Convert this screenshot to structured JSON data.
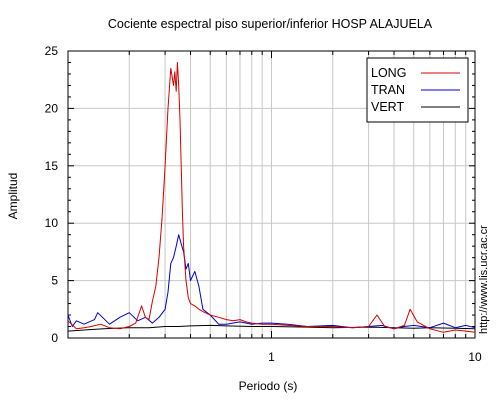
{
  "chart_data": {
    "type": "line",
    "title": "Cociente espectral piso superior/inferior  HOSP ALAJUELA",
    "xlabel": "Periodo (s)",
    "ylabel": "Amplitud",
    "x_scale": "log",
    "xlim": [
      0.1,
      10
    ],
    "ylim": [
      0,
      25
    ],
    "x_tick_labels": [
      {
        "value": 1,
        "label": "1"
      },
      {
        "value": 10,
        "label": "10"
      }
    ],
    "y_ticks": [
      0,
      5,
      10,
      15,
      20,
      25
    ],
    "grid": true,
    "legend_position": "top-right",
    "watermark": "http://www.lis.ucr.ac.cr",
    "series": [
      {
        "name": "LONG",
        "color": "#d40000",
        "x": [
          0.1,
          0.11,
          0.12,
          0.13,
          0.145,
          0.16,
          0.18,
          0.2,
          0.215,
          0.23,
          0.24,
          0.25,
          0.26,
          0.27,
          0.28,
          0.29,
          0.3,
          0.31,
          0.32,
          0.33,
          0.335,
          0.34,
          0.345,
          0.35,
          0.355,
          0.36,
          0.365,
          0.37,
          0.38,
          0.39,
          0.4,
          0.42,
          0.44,
          0.46,
          0.5,
          0.55,
          0.6,
          0.65,
          0.7,
          0.75,
          0.8,
          0.9,
          1.0,
          1.2,
          1.5,
          2.0,
          2.5,
          3.0,
          3.3,
          3.6,
          4.0,
          4.5,
          4.8,
          5.2,
          6.0,
          7.0,
          8.0,
          9.0,
          10.0
        ],
        "y": [
          1.5,
          0.8,
          0.9,
          1.0,
          1.2,
          0.9,
          0.8,
          1.0,
          1.3,
          2.8,
          1.8,
          1.6,
          3.2,
          4.5,
          7.0,
          10.5,
          15.0,
          20.0,
          23.5,
          22.0,
          23.2,
          21.5,
          24.0,
          22.0,
          19.0,
          15.0,
          11.0,
          8.0,
          5.0,
          3.5,
          3.0,
          2.8,
          2.5,
          2.3,
          2.0,
          1.8,
          1.6,
          1.5,
          1.6,
          1.4,
          1.3,
          1.2,
          1.2,
          1.1,
          1.0,
          1.0,
          0.9,
          1.0,
          2.0,
          1.0,
          0.8,
          1.1,
          2.5,
          1.4,
          0.8,
          0.5,
          0.7,
          0.6,
          0.5
        ]
      },
      {
        "name": "TRAN",
        "color": "#0000cc",
        "x": [
          0.1,
          0.105,
          0.11,
          0.12,
          0.135,
          0.14,
          0.16,
          0.18,
          0.2,
          0.22,
          0.24,
          0.26,
          0.28,
          0.3,
          0.31,
          0.32,
          0.33,
          0.34,
          0.35,
          0.36,
          0.37,
          0.38,
          0.39,
          0.4,
          0.42,
          0.44,
          0.46,
          0.5,
          0.55,
          0.6,
          0.7,
          0.8,
          0.9,
          1.0,
          1.2,
          1.5,
          2.0,
          2.5,
          3.0,
          3.5,
          4.0,
          4.5,
          5.0,
          6.0,
          7.0,
          8.0,
          9.0,
          10.0
        ],
        "y": [
          2.0,
          1.0,
          1.5,
          1.2,
          1.6,
          2.2,
          1.2,
          1.8,
          2.2,
          1.5,
          1.8,
          1.3,
          1.8,
          2.5,
          4.0,
          6.5,
          7.0,
          8.0,
          9.0,
          8.2,
          7.5,
          6.0,
          6.5,
          5.0,
          5.8,
          4.5,
          2.5,
          2.0,
          1.2,
          1.2,
          1.4,
          1.2,
          1.3,
          1.3,
          1.2,
          1.0,
          1.1,
          0.9,
          1.0,
          1.1,
          0.8,
          1.0,
          1.1,
          0.9,
          1.3,
          0.9,
          1.1,
          0.9
        ]
      },
      {
        "name": "VERT",
        "color": "#000000",
        "x": [
          0.1,
          0.12,
          0.15,
          0.2,
          0.25,
          0.3,
          0.35,
          0.4,
          0.5,
          0.6,
          0.8,
          1.0,
          1.5,
          2.0,
          3.0,
          4.0,
          5.0,
          6.0,
          8.0,
          10.0
        ],
        "y": [
          0.6,
          0.7,
          0.8,
          0.9,
          0.9,
          1.0,
          1.0,
          1.05,
          1.1,
          1.05,
          1.0,
          1.0,
          0.95,
          0.9,
          0.95,
          0.9,
          0.85,
          0.9,
          0.85,
          0.8
        ]
      }
    ]
  }
}
